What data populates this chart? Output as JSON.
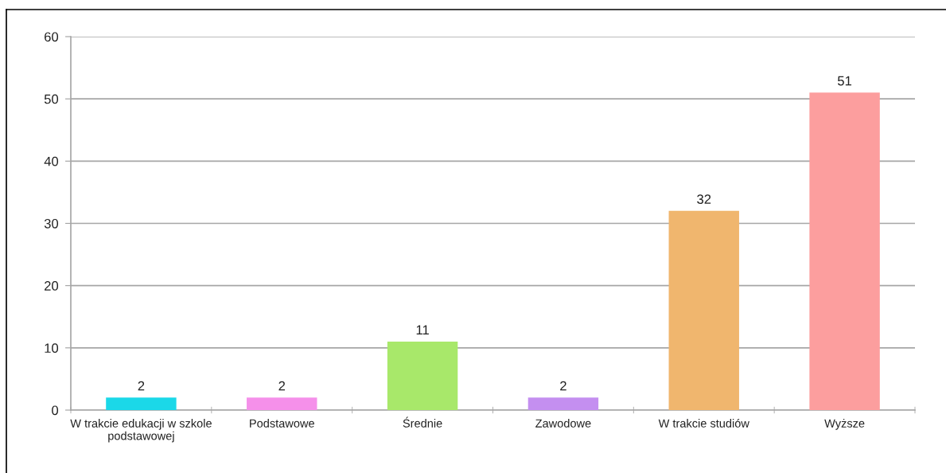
{
  "chart_data": {
    "type": "bar",
    "categories": [
      "W trakcie edukacji w szkole\npodstawowej",
      "Podstawowe",
      "Średnie",
      "Zawodowe",
      "W trakcie studiów",
      "Wyższe"
    ],
    "values": [
      2,
      2,
      11,
      2,
      32,
      51
    ],
    "colors": [
      "#1bd8e8",
      "#f590ea",
      "#a8e86a",
      "#c48ff0",
      "#f0b66e",
      "#fc9e9e"
    ],
    "ylim": [
      0,
      60
    ],
    "yticks": [
      0,
      10,
      20,
      30,
      40,
      50,
      60
    ],
    "grid": "y",
    "data_labels": true,
    "legend": false
  }
}
